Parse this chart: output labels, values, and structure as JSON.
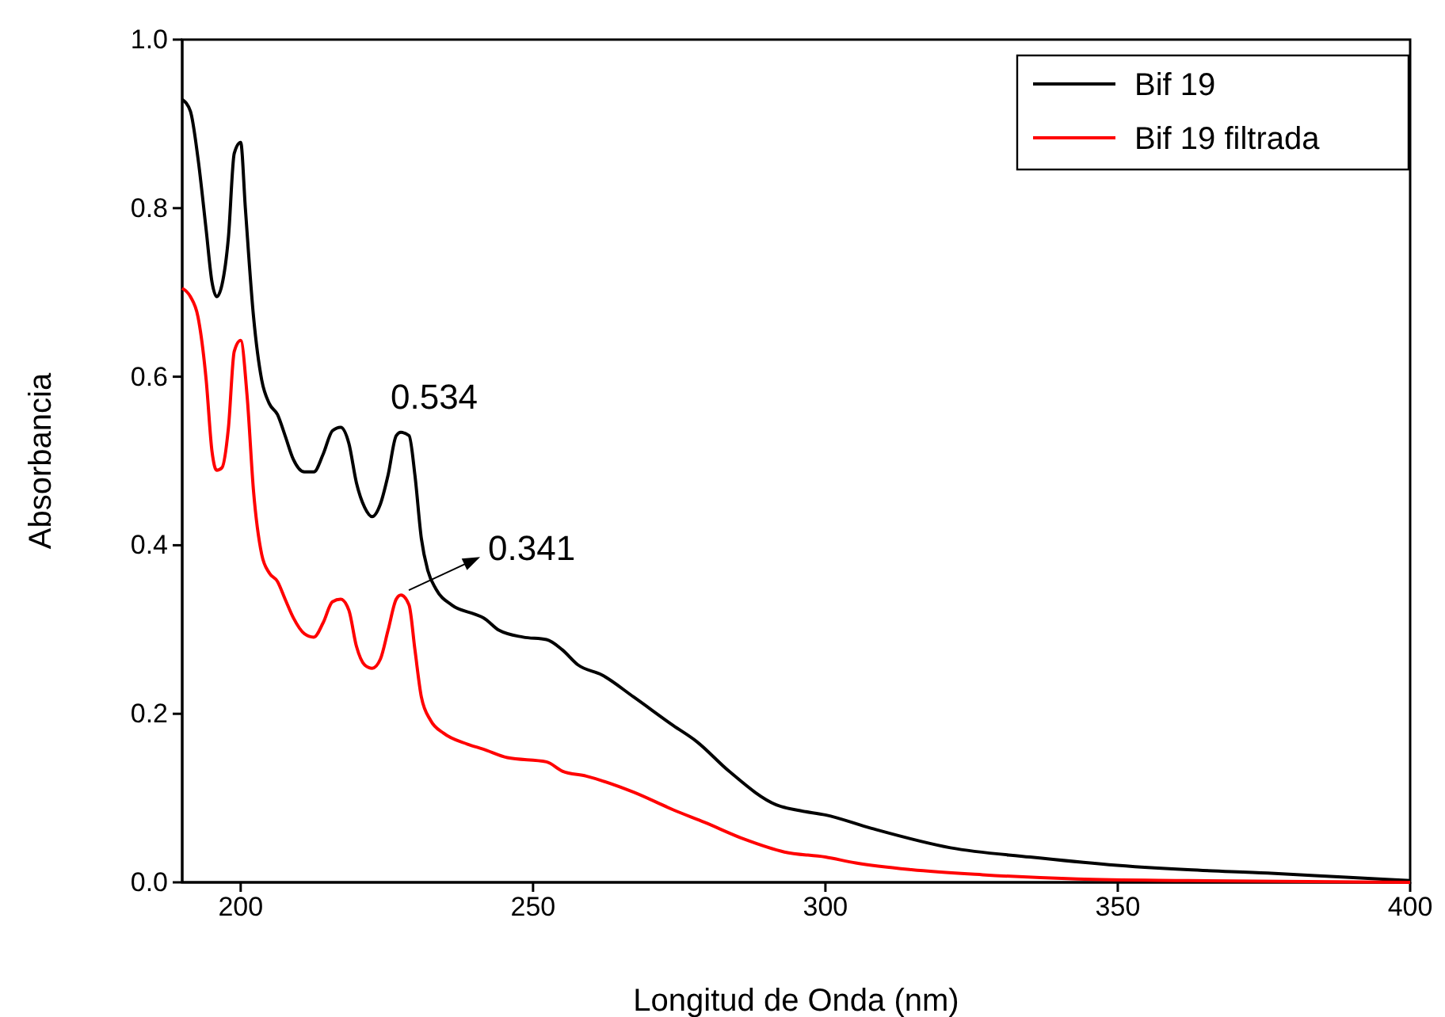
{
  "chart_data": {
    "type": "line",
    "xlabel": "Longitud de Onda (nm)",
    "ylabel": "Absorbancia",
    "xlim": [
      190,
      400
    ],
    "xticks": [
      200,
      250,
      300,
      350,
      400
    ],
    "ylim": [
      0,
      1
    ],
    "yticks": [
      {
        "value": 0,
        "label": "0.0"
      },
      {
        "value": 0.2,
        "label": "0.2"
      },
      {
        "value": 0.4,
        "label": "0.4"
      },
      {
        "value": 0.6,
        "label": "0.6"
      },
      {
        "value": 0.8,
        "label": "0.8"
      },
      {
        "value": 1,
        "label": "1.0"
      }
    ],
    "grid": false,
    "legend": "top right",
    "marker": "none",
    "line_style": "solid",
    "annotations": [
      {
        "text": "0.534",
        "x": 227.4,
        "y": 0.534
      },
      {
        "text": "0.341",
        "x": 227.4,
        "y": 0.341
      }
    ],
    "series": [
      {
        "name": "Bif 19",
        "color": "#000000",
        "x": [
          190,
          191.4,
          192.7,
          194.1,
          195.1,
          195.9,
          196.8,
          197.9,
          198.9,
          200,
          200.8,
          202.2,
          203.6,
          204.9,
          206.3,
          207.6,
          209,
          210.9,
          212.5,
          214.1,
          215.7,
          217.1,
          218.5,
          219.8,
          221.2,
          222.5,
          223.9,
          225.2,
          226.6,
          227.4,
          228.8,
          229.8,
          230.9,
          232,
          233.4,
          236.1,
          240.1,
          241.5,
          244.2,
          248.3,
          252.3,
          255,
          257.7,
          261.8,
          267.2,
          274,
          278,
          283.5,
          291.6,
          295.7,
          300,
          307.9,
          321.4,
          335,
          348.5,
          362,
          375.6,
          389,
          400
        ],
        "values": [
          0.929,
          0.915,
          0.859,
          0.774,
          0.712,
          0.695,
          0.709,
          0.765,
          0.865,
          0.878,
          0.8,
          0.671,
          0.596,
          0.568,
          0.555,
          0.53,
          0.502,
          0.487,
          0.487,
          0.508,
          0.536,
          0.54,
          0.521,
          0.474,
          0.445,
          0.434,
          0.449,
          0.483,
          0.53,
          0.534,
          0.53,
          0.483,
          0.408,
          0.37,
          0.348,
          0.329,
          0.318,
          0.314,
          0.299,
          0.291,
          0.288,
          0.276,
          0.258,
          0.246,
          0.22,
          0.186,
          0.167,
          0.132,
          0.092,
          0.085,
          0.08,
          0.064,
          0.041,
          0.03,
          0.021,
          0.015,
          0.011,
          0.006,
          0.002
        ]
      },
      {
        "name": "Bif 19 filtrada",
        "color": "#ff0000",
        "x": [
          190,
          191.4,
          192.7,
          194.1,
          195.1,
          195.9,
          196.8,
          197.9,
          198.9,
          200,
          201.1,
          202.2,
          203.6,
          204.9,
          206.3,
          207.6,
          209,
          210.9,
          212.5,
          214.1,
          215.7,
          217.1,
          218.5,
          219.8,
          221.2,
          222.5,
          223.9,
          225.2,
          226.6,
          227.4,
          228.8,
          229.8,
          230.9,
          232.5,
          234.7,
          238.8,
          241.5,
          245.6,
          252.3,
          255,
          259.1,
          267.2,
          274,
          279.4,
          286.2,
          293,
          300,
          305.2,
          314.7,
          326.9,
          343.1,
          362,
          400
        ],
        "values": [
          0.705,
          0.695,
          0.671,
          0.596,
          0.511,
          0.489,
          0.492,
          0.539,
          0.63,
          0.643,
          0.577,
          0.464,
          0.389,
          0.367,
          0.357,
          0.336,
          0.314,
          0.295,
          0.291,
          0.308,
          0.333,
          0.336,
          0.323,
          0.28,
          0.258,
          0.254,
          0.265,
          0.299,
          0.336,
          0.341,
          0.329,
          0.276,
          0.22,
          0.192,
          0.177,
          0.164,
          0.158,
          0.148,
          0.143,
          0.132,
          0.126,
          0.107,
          0.086,
          0.071,
          0.051,
          0.036,
          0.03,
          0.023,
          0.015,
          0.009,
          0.004,
          0.002,
          0
        ]
      }
    ]
  }
}
